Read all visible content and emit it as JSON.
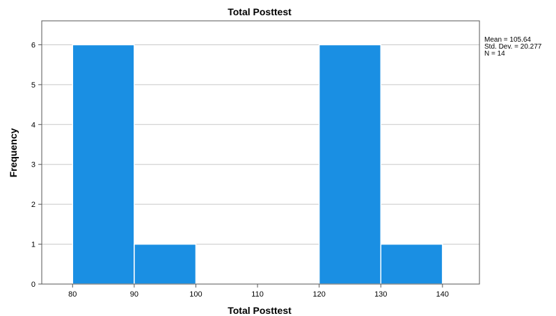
{
  "chart_data": {
    "type": "bar",
    "title": "Total Posttest",
    "xlabel": "Total Posttest",
    "ylabel": "Frequency",
    "bins": [
      {
        "start": 80,
        "end": 90,
        "count": 6
      },
      {
        "start": 90,
        "end": 100,
        "count": 1
      },
      {
        "start": 100,
        "end": 110,
        "count": 0
      },
      {
        "start": 110,
        "end": 120,
        "count": 0
      },
      {
        "start": 120,
        "end": 130,
        "count": 6
      },
      {
        "start": 130,
        "end": 140,
        "count": 1
      }
    ],
    "xticks": [
      80,
      90,
      100,
      110,
      120,
      130,
      140
    ],
    "yticks": [
      0,
      1,
      2,
      3,
      4,
      5,
      6
    ],
    "xlim": [
      75,
      146
    ],
    "ylim": [
      0,
      6.6
    ],
    "grid": "horizontal",
    "bar_color": "#1a8fe3",
    "stats": {
      "mean": "Mean = 105.64",
      "std_dev": "Std. Dev. = 20.277",
      "n": "N = 14"
    }
  }
}
